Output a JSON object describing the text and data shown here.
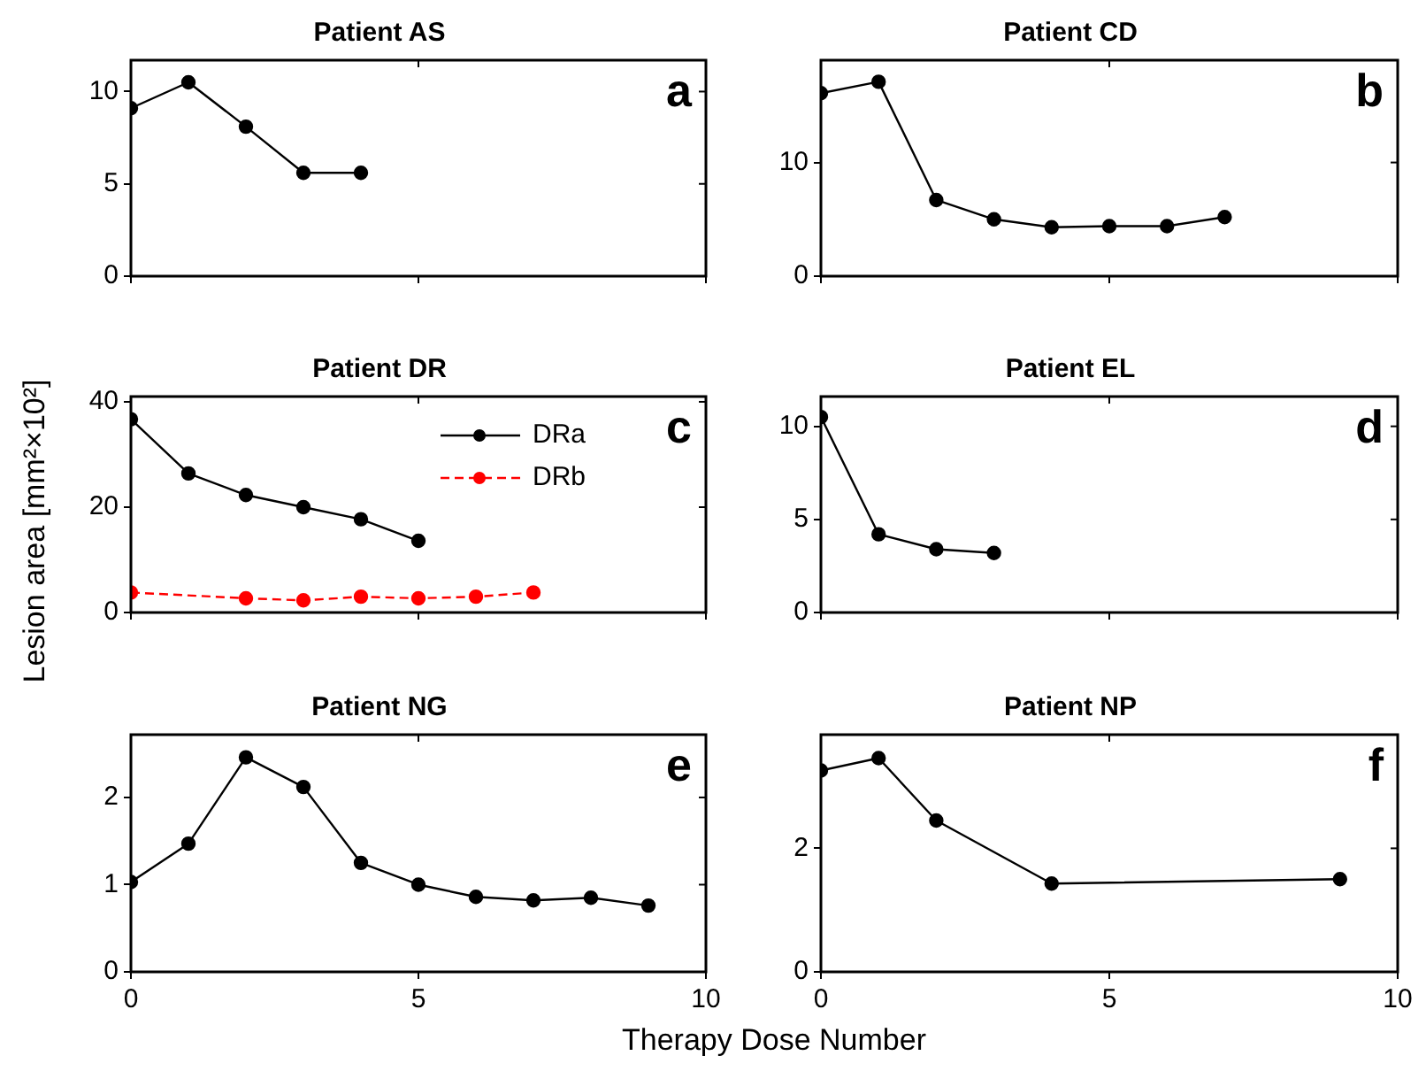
{
  "chart_data": [
    {
      "type": "line",
      "title": "Patient AS",
      "annotations": [
        "a"
      ],
      "xlim": [
        0,
        10
      ],
      "xticks": [
        0,
        5,
        10
      ],
      "ylim": [
        0,
        11.7
      ],
      "yticks": [
        0,
        5,
        10
      ],
      "tick_labels": "y",
      "grid": false,
      "marker": "circle",
      "line_style": "solid",
      "legend": false,
      "series": [
        {
          "color": "#000000",
          "x": [
            0,
            1,
            2,
            3,
            4
          ],
          "values": [
            9.1,
            10.5,
            8.1,
            5.6,
            5.6
          ]
        }
      ]
    },
    {
      "type": "line",
      "title": "Patient CD",
      "annotations": [
        "b"
      ],
      "xlim": [
        0,
        10
      ],
      "xticks": [
        0,
        5,
        10
      ],
      "ylim": [
        0,
        19
      ],
      "yticks": [
        0,
        10
      ],
      "tick_labels": "y",
      "grid": false,
      "marker": "circle",
      "line_style": "solid",
      "legend": false,
      "series": [
        {
          "color": "#000000",
          "x": [
            0,
            1,
            2,
            3,
            4,
            5,
            6,
            7
          ],
          "values": [
            16.1,
            17.1,
            6.7,
            5.0,
            4.3,
            4.4,
            4.4,
            5.2
          ]
        }
      ]
    },
    {
      "type": "line",
      "title": "Patient DR",
      "ylabel": "Lesion area [mm²×10²]",
      "annotations": [
        "c"
      ],
      "xlim": [
        0,
        10
      ],
      "xticks": [
        0,
        5,
        10
      ],
      "ylim": [
        0,
        41
      ],
      "yticks": [
        0,
        20,
        40
      ],
      "tick_labels": "y",
      "grid": false,
      "marker": "circle",
      "legend": "top right",
      "series": [
        {
          "name": "DRa",
          "color": "#000000",
          "line_style": "solid",
          "x": [
            0,
            1,
            2,
            3,
            4,
            5
          ],
          "values": [
            36.7,
            26.4,
            22.3,
            20,
            17.7,
            13.6
          ]
        },
        {
          "name": "DRb",
          "color": "#ff0000",
          "line_style": "dashed",
          "x": [
            0,
            2,
            3,
            4,
            5,
            6,
            7
          ],
          "values": [
            3.8,
            2.7,
            2.3,
            3.0,
            2.7,
            3.0,
            3.8
          ]
        }
      ]
    },
    {
      "type": "line",
      "title": "Patient EL",
      "annotations": [
        "d"
      ],
      "xlim": [
        0,
        10
      ],
      "xticks": [
        0,
        5,
        10
      ],
      "ylim": [
        0,
        11.6
      ],
      "yticks": [
        0,
        5,
        10
      ],
      "tick_labels": "y",
      "grid": false,
      "marker": "circle",
      "line_style": "solid",
      "legend": false,
      "series": [
        {
          "color": "#000000",
          "x": [
            0,
            1,
            2,
            3
          ],
          "values": [
            10.5,
            4.2,
            3.4,
            3.2
          ]
        }
      ]
    },
    {
      "type": "line",
      "title": "Patient NG",
      "xlabel": "Therapy Dose Number",
      "annotations": [
        "e"
      ],
      "xlim": [
        0,
        10
      ],
      "xticks": [
        0,
        5,
        10
      ],
      "ylim": [
        0,
        2.72
      ],
      "yticks": [
        0,
        1,
        2
      ],
      "grid": false,
      "marker": "circle",
      "line_style": "solid",
      "legend": false,
      "series": [
        {
          "color": "#000000",
          "x": [
            0,
            1,
            2,
            3,
            4,
            5,
            6,
            7,
            8,
            9
          ],
          "values": [
            1.03,
            1.47,
            2.46,
            2.12,
            1.25,
            1.0,
            0.86,
            0.82,
            0.85,
            0.76
          ]
        }
      ]
    },
    {
      "type": "line",
      "title": "Patient NP",
      "annotations": [
        "f"
      ],
      "xlim": [
        0,
        10
      ],
      "xticks": [
        0,
        5,
        10
      ],
      "ylim": [
        0,
        3.84
      ],
      "yticks": [
        0,
        2
      ],
      "grid": false,
      "marker": "circle",
      "line_style": "solid",
      "legend": false,
      "series": [
        {
          "color": "#000000",
          "x": [
            0,
            1,
            2,
            4,
            9
          ],
          "values": [
            3.26,
            3.46,
            2.45,
            1.43,
            1.5
          ]
        }
      ]
    }
  ]
}
